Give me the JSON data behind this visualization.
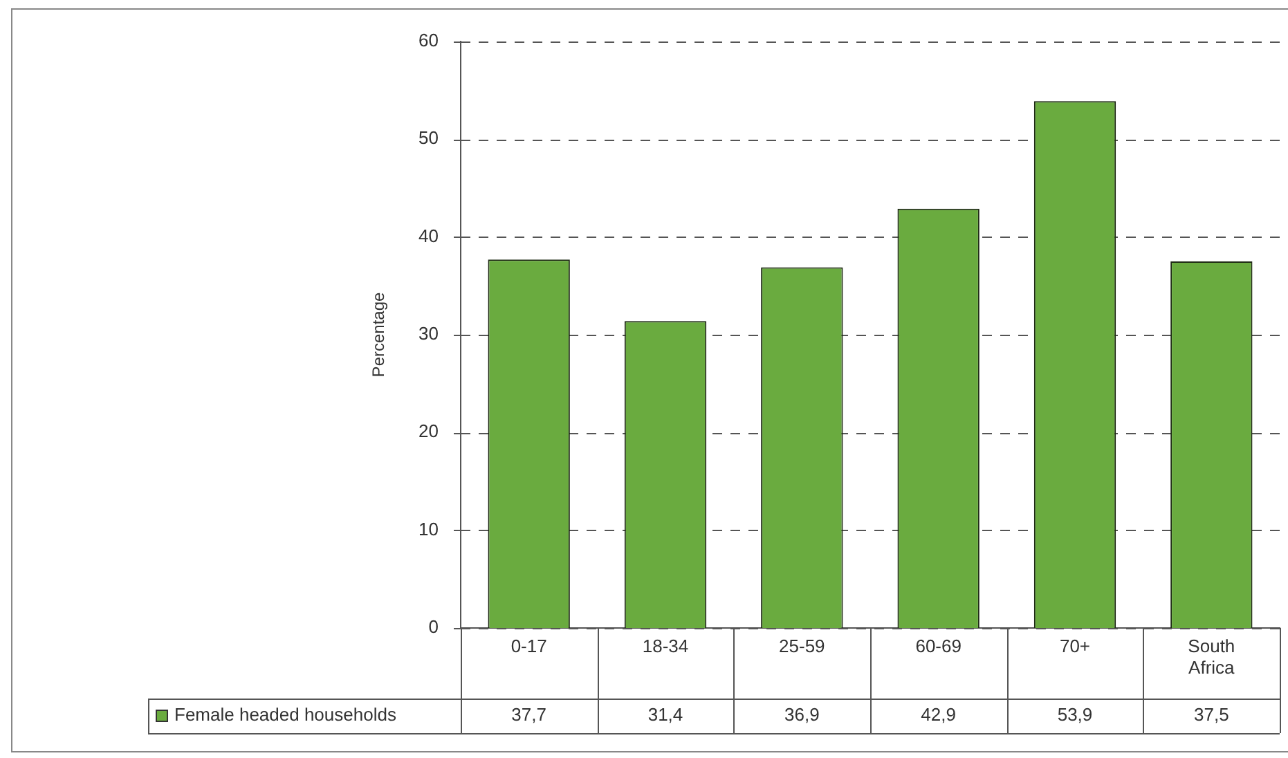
{
  "chart_data": {
    "type": "bar",
    "ylabel": "Percentage",
    "categories": [
      "0-17",
      "18-34",
      "25-59",
      "60-69",
      "70+",
      "South Africa"
    ],
    "series": [
      {
        "name": "Female headed households",
        "color": "#6aab3f",
        "values": [
          37.7,
          31.4,
          36.9,
          42.9,
          53.9,
          37.5
        ],
        "value_labels": [
          "37,7",
          "31,4",
          "36,9",
          "42,9",
          "53,9",
          "37,5"
        ]
      }
    ],
    "ylim": [
      0,
      60
    ],
    "yticks": [
      0,
      10,
      20,
      30,
      40,
      50,
      60
    ],
    "grid": "y",
    "legend": "bottom"
  }
}
